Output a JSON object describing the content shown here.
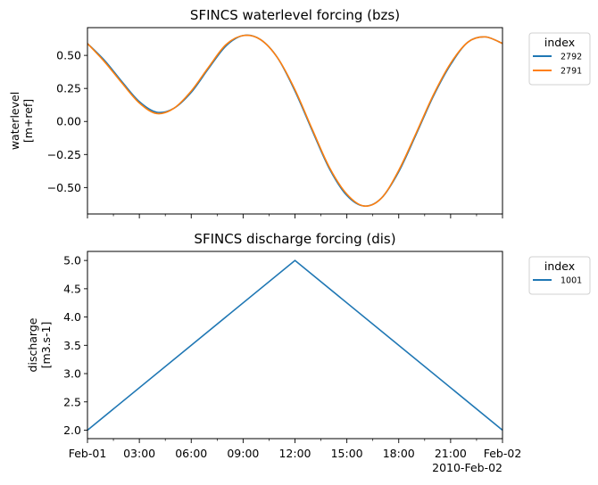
{
  "chart_data": [
    {
      "type": "line",
      "title": "SFINCS waterlevel forcing (bzs)",
      "xlabel": "",
      "ylabel": [
        "waterlevel",
        "[m+ref]"
      ],
      "x_hours": [
        0,
        1,
        2,
        3,
        4,
        5,
        6,
        7,
        8,
        9,
        10,
        11,
        12,
        13,
        14,
        15,
        16,
        17,
        18,
        19,
        20,
        21,
        22,
        23,
        24
      ],
      "series": [
        {
          "name": "2792",
          "color": "#1f77b4",
          "values": [
            0.59,
            0.46,
            0.3,
            0.15,
            0.07,
            0.1,
            0.22,
            0.4,
            0.57,
            0.65,
            0.62,
            0.48,
            0.23,
            -0.07,
            -0.36,
            -0.56,
            -0.64,
            -0.58,
            -0.38,
            -0.1,
            0.19,
            0.43,
            0.6,
            0.64,
            0.59
          ]
        },
        {
          "name": "2791",
          "color": "#ff7f0e",
          "values": [
            0.59,
            0.45,
            0.29,
            0.14,
            0.06,
            0.1,
            0.23,
            0.41,
            0.58,
            0.65,
            0.62,
            0.48,
            0.24,
            -0.06,
            -0.35,
            -0.55,
            -0.64,
            -0.58,
            -0.37,
            -0.09,
            0.2,
            0.44,
            0.6,
            0.64,
            0.59
          ]
        }
      ],
      "yticks": [
        -0.5,
        -0.25,
        0.0,
        0.25,
        0.5
      ],
      "ytick_labels": [
        "−0.50",
        "−0.25",
        "0.00",
        "0.25",
        "0.50"
      ],
      "ylim": [
        -0.7,
        0.71
      ],
      "xlim_hours": [
        0,
        24
      ],
      "legend": {
        "title": "index",
        "placement": "outside-top-right"
      }
    },
    {
      "type": "line",
      "title": "SFINCS discharge forcing (dis)",
      "xlabel": "",
      "ylabel": [
        "discharge",
        "[m3.s-1]"
      ],
      "x_hours": [
        0,
        12,
        24
      ],
      "series": [
        {
          "name": "1001",
          "color": "#1f77b4",
          "values": [
            2.0,
            5.0,
            2.0
          ]
        }
      ],
      "yticks": [
        2.0,
        2.5,
        3.0,
        3.5,
        4.0,
        4.5,
        5.0
      ],
      "ytick_labels": [
        "2.0",
        "2.5",
        "3.0",
        "3.5",
        "4.0",
        "4.5",
        "5.0"
      ],
      "ylim": [
        1.85,
        5.16
      ],
      "xlim_hours": [
        0,
        24
      ],
      "xticks_hours": [
        0,
        3,
        6,
        9,
        12,
        15,
        18,
        21,
        24
      ],
      "xtick_labels": [
        "Feb-01",
        "03:00",
        "06:00",
        "09:00",
        "12:00",
        "15:00",
        "18:00",
        "21:00",
        "Feb-02"
      ],
      "x_offset_label": "2010-Feb-02",
      "legend": {
        "title": "index",
        "placement": "outside-top-right"
      }
    }
  ]
}
